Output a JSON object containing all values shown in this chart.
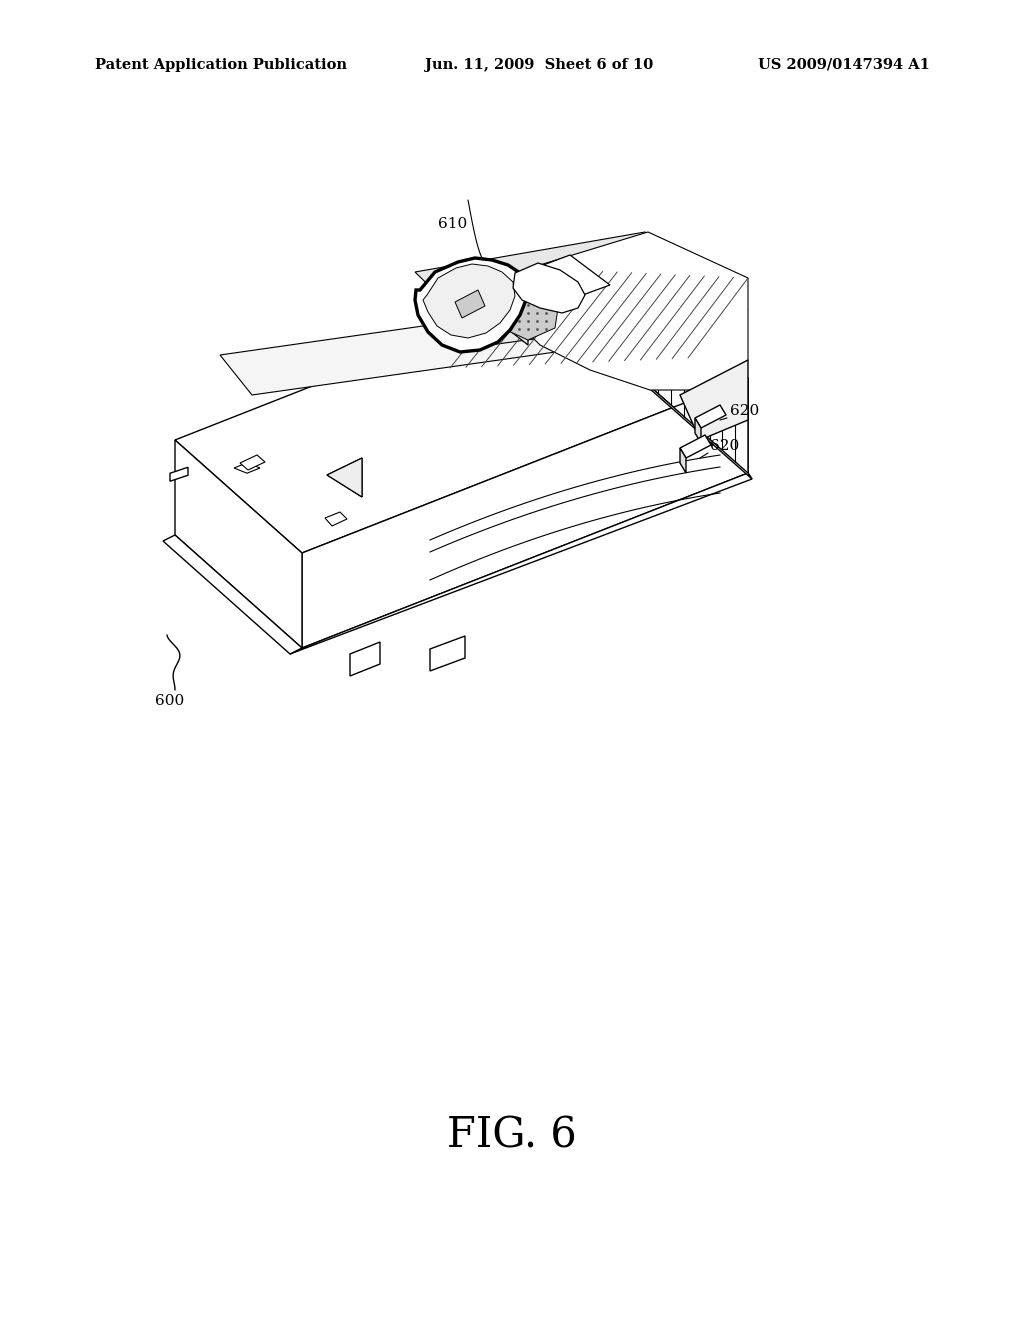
{
  "header_left": "Patent Application Publication",
  "header_center": "Jun. 11, 2009  Sheet 6 of 10",
  "header_right": "US 2009/0147394 A1",
  "fig_label": "FIG. 6",
  "bg_color": "#ffffff",
  "lw": 1.0,
  "lw2": 2.2
}
